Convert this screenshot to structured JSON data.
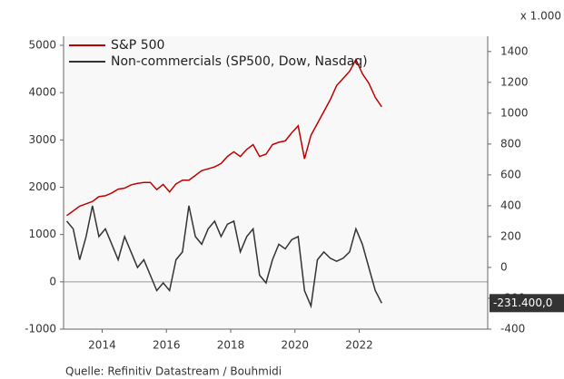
{
  "chart_data": {
    "type": "line",
    "unit_label": "x 1.000",
    "source": "Quelle: Refinitiv Datastream / Bouhmidi",
    "annotation": "-231.400,0",
    "x": [
      2012.9,
      2013.1,
      2013.3,
      2013.5,
      2013.7,
      2013.9,
      2014.1,
      2014.3,
      2014.5,
      2014.7,
      2014.9,
      2015.1,
      2015.3,
      2015.5,
      2015.7,
      2015.9,
      2016.1,
      2016.3,
      2016.5,
      2016.7,
      2016.9,
      2017.1,
      2017.3,
      2017.5,
      2017.7,
      2017.9,
      2018.1,
      2018.3,
      2018.5,
      2018.7,
      2018.9,
      2019.1,
      2019.3,
      2019.5,
      2019.7,
      2019.9,
      2020.1,
      2020.3,
      2020.5,
      2020.7,
      2020.9,
      2021.1,
      2021.3,
      2021.5,
      2021.7,
      2021.9,
      2022.1,
      2022.3,
      2022.5,
      2022.7
    ],
    "series": [
      {
        "name": "S&P 500",
        "color": "#c00000",
        "axis": "y",
        "values": [
          1400,
          1500,
          1600,
          1650,
          1700,
          1800,
          1820,
          1880,
          1960,
          1980,
          2050,
          2080,
          2100,
          2100,
          1950,
          2060,
          1900,
          2070,
          2150,
          2150,
          2250,
          2350,
          2390,
          2430,
          2500,
          2650,
          2750,
          2650,
          2800,
          2900,
          2650,
          2700,
          2900,
          2950,
          2980,
          3150,
          3300,
          2600,
          3100,
          3350,
          3600,
          3850,
          4150,
          4300,
          4450,
          4700,
          4400,
          4200,
          3900,
          3700
        ]
      },
      {
        "name": "Non-commercials (SP500, Dow, Nasdaq)",
        "color": "#333333",
        "axis": "y2",
        "values": [
          300,
          250,
          50,
          200,
          400,
          200,
          250,
          150,
          50,
          200,
          100,
          0,
          50,
          -50,
          -150,
          -100,
          -150,
          50,
          100,
          400,
          200,
          150,
          250,
          300,
          200,
          280,
          300,
          100,
          200,
          250,
          -50,
          -100,
          50,
          150,
          120,
          180,
          200,
          -150,
          -250,
          50,
          100,
          60,
          40,
          60,
          100,
          250,
          150,
          0,
          -150,
          -231.4
        ]
      }
    ],
    "xlim": [
      2012.8,
      2026
    ],
    "xticks": [
      2014,
      2016,
      2018,
      2020,
      2022
    ],
    "ylim": [
      -1000,
      5000
    ],
    "yticks": [
      -1000,
      0,
      1000,
      2000,
      3000,
      4000,
      5000
    ],
    "y2lim": [
      -400,
      1440
    ],
    "y2ticks": [
      -400,
      -200,
      0,
      200,
      400,
      600,
      800,
      1000,
      1200,
      1400
    ]
  }
}
